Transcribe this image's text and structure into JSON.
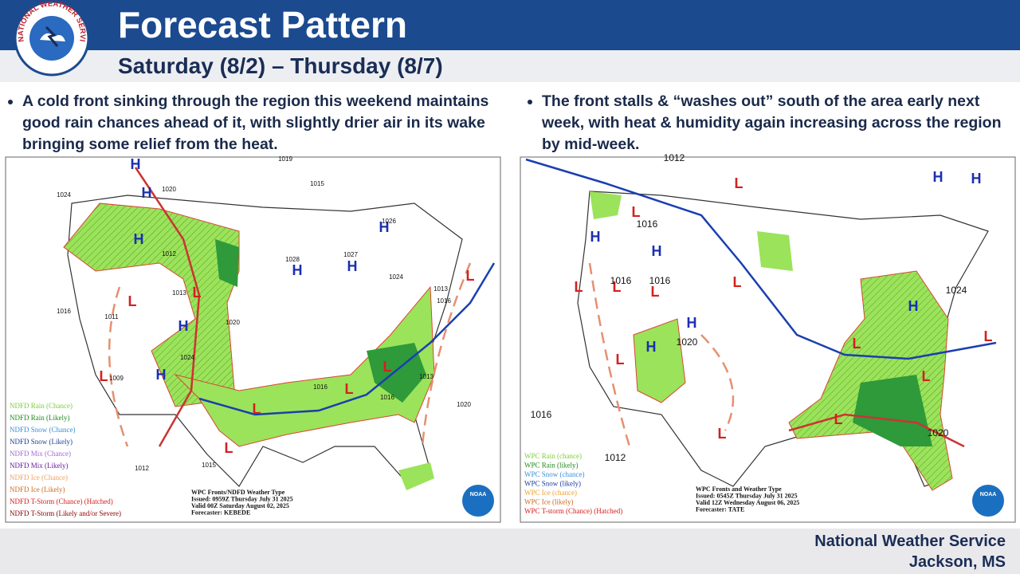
{
  "header": {
    "title": "Forecast Pattern",
    "subtitle": "Saturday (8/2) – Thursday (8/7)",
    "logo_text": "NATIONAL WEATHER SERVICE"
  },
  "left": {
    "bullet": "A cold front sinking through the region this weekend maintains good rain chances ahead of it, with slightly drier air in its wake bringing some relief from the heat.",
    "map": {
      "legend": [
        {
          "text": "NDFD Rain (Chance)",
          "color": "#7ccf3a"
        },
        {
          "text": "NDFD Rain (Likely)",
          "color": "#1f8a1f"
        },
        {
          "text": "NDFD Snow (Chance)",
          "color": "#3a8fd8"
        },
        {
          "text": "NDFD Snow (Likely)",
          "color": "#1c3f9a"
        },
        {
          "text": "NDFD Mix (Chance)",
          "color": "#a36bd0"
        },
        {
          "text": "NDFD Mix (Likely)",
          "color": "#6a1b9a"
        },
        {
          "text": "NDFD Ice (Chance)",
          "color": "#f0a060"
        },
        {
          "text": "NDFD Ice (Likely)",
          "color": "#d2691e"
        },
        {
          "text": "NDFD T-Storm (Chance) (Hatched)",
          "color": "#d81b1b"
        },
        {
          "text": "NDFD T-Storm (Likely and/or Severe)",
          "color": "#8b0000"
        }
      ],
      "info": [
        "WPC Fronts/NDFD Weather Type",
        "Issued: 0959Z Thursday July 31 2025",
        "Valid 00Z Saturday August 02, 2025",
        "Forecaster: KEBEDE"
      ],
      "highs": [
        "H",
        "H",
        "H",
        "H",
        "H",
        "H",
        "H",
        "H"
      ],
      "lows": [
        "L",
        "L",
        "L",
        "L",
        "L",
        "L",
        "L",
        "L"
      ],
      "isobars": [
        "1024",
        "1020",
        "1019",
        "1015",
        "1026",
        "1028",
        "1027",
        "1024",
        "1016",
        "1011",
        "1020",
        "1024",
        "1009",
        "1016",
        "1013",
        "1016",
        "1020",
        "1015",
        "1012",
        "1013",
        "1016",
        "1012",
        "1013"
      ],
      "noaa": "NOAA"
    }
  },
  "right": {
    "bullet": "The front stalls & “washes out” south of the area early next week, with heat & humidity again increasing across the region by mid-week.",
    "map": {
      "legend": [
        {
          "text": "WPC Rain (chance)",
          "color": "#7ccf3a"
        },
        {
          "text": "WPC Rain (likely)",
          "color": "#1f8a1f"
        },
        {
          "text": "WPC Snow (chance)",
          "color": "#3a8fd8"
        },
        {
          "text": "WPC Snow (likely)",
          "color": "#1c3f9a"
        },
        {
          "text": "WPC Ice (chance)",
          "color": "#f0a030"
        },
        {
          "text": "WPC Ice (likely)",
          "color": "#d2691e"
        },
        {
          "text": "WPC T-storm (Chance) (Hatched)",
          "color": "#d81b1b"
        }
      ],
      "info": [
        "WPC Fronts and Weather Type",
        "Issued: 0545Z Thursday July 31 2025",
        "Valid 12Z Wednesday August 06, 2025",
        "Forecaster: TATE"
      ],
      "highs": [
        "H",
        "H",
        "H",
        "H",
        "H",
        "H",
        "H"
      ],
      "lows": [
        "L",
        "L",
        "L",
        "L",
        "L",
        "L",
        "L",
        "L",
        "L",
        "L",
        "L",
        "L"
      ],
      "isobars": [
        "1012",
        "1016",
        "1016",
        "1016",
        "1020",
        "1024",
        "1016",
        "1012",
        "1020"
      ],
      "noaa": "NOAA"
    }
  },
  "footer": [
    "National Weather Service",
    "Jackson, MS"
  ]
}
